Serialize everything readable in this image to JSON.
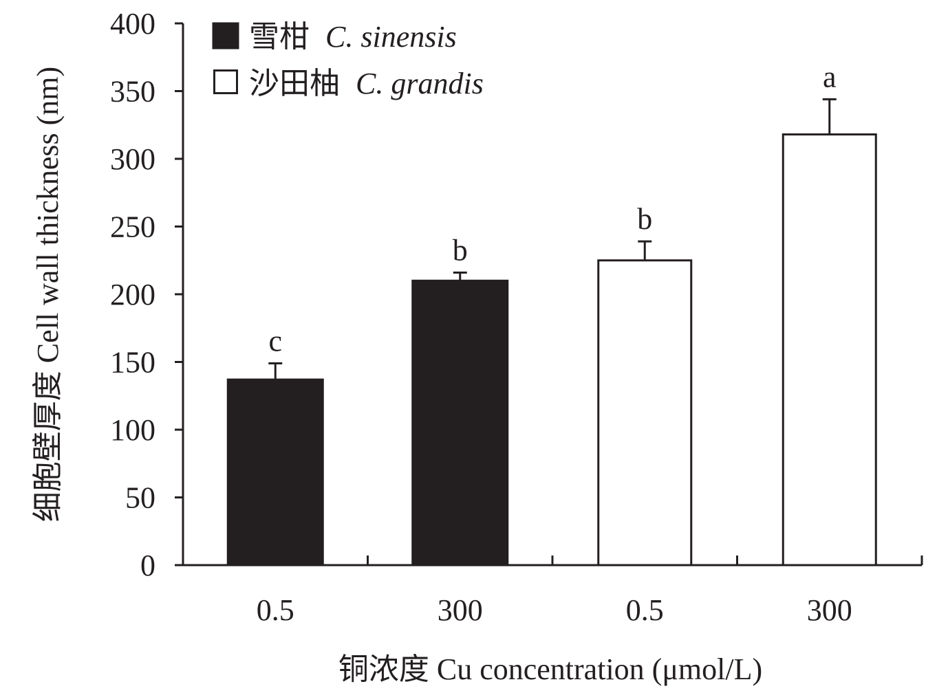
{
  "chart_data": {
    "type": "bar",
    "title": "",
    "xlabel": "铜浓度 Cu concentration (μmol/L)",
    "ylabel": "细胞壁厚度 Cell wall thickness (nm)",
    "ylim": [
      0,
      400
    ],
    "yticks": [
      0,
      50,
      100,
      150,
      200,
      250,
      300,
      350,
      400
    ],
    "categories": [
      "0.5",
      "300",
      "0.5",
      "300"
    ],
    "legend_position": "top-left",
    "series": [
      {
        "name_cn": "雪柑",
        "name_latin": "C. sinensis",
        "color": "#231f20",
        "fill": "solid",
        "bars": [
          {
            "category_index": 0,
            "value": 137,
            "error": 12,
            "significance": "c"
          },
          {
            "category_index": 1,
            "value": 210,
            "error": 6,
            "significance": "b"
          }
        ]
      },
      {
        "name_cn": "沙田柚",
        "name_latin": "C. grandis",
        "color": "#ffffff",
        "fill": "open",
        "bars": [
          {
            "category_index": 2,
            "value": 225,
            "error": 14,
            "significance": "b"
          },
          {
            "category_index": 3,
            "value": 318,
            "error": 26,
            "significance": "a"
          }
        ]
      }
    ]
  }
}
